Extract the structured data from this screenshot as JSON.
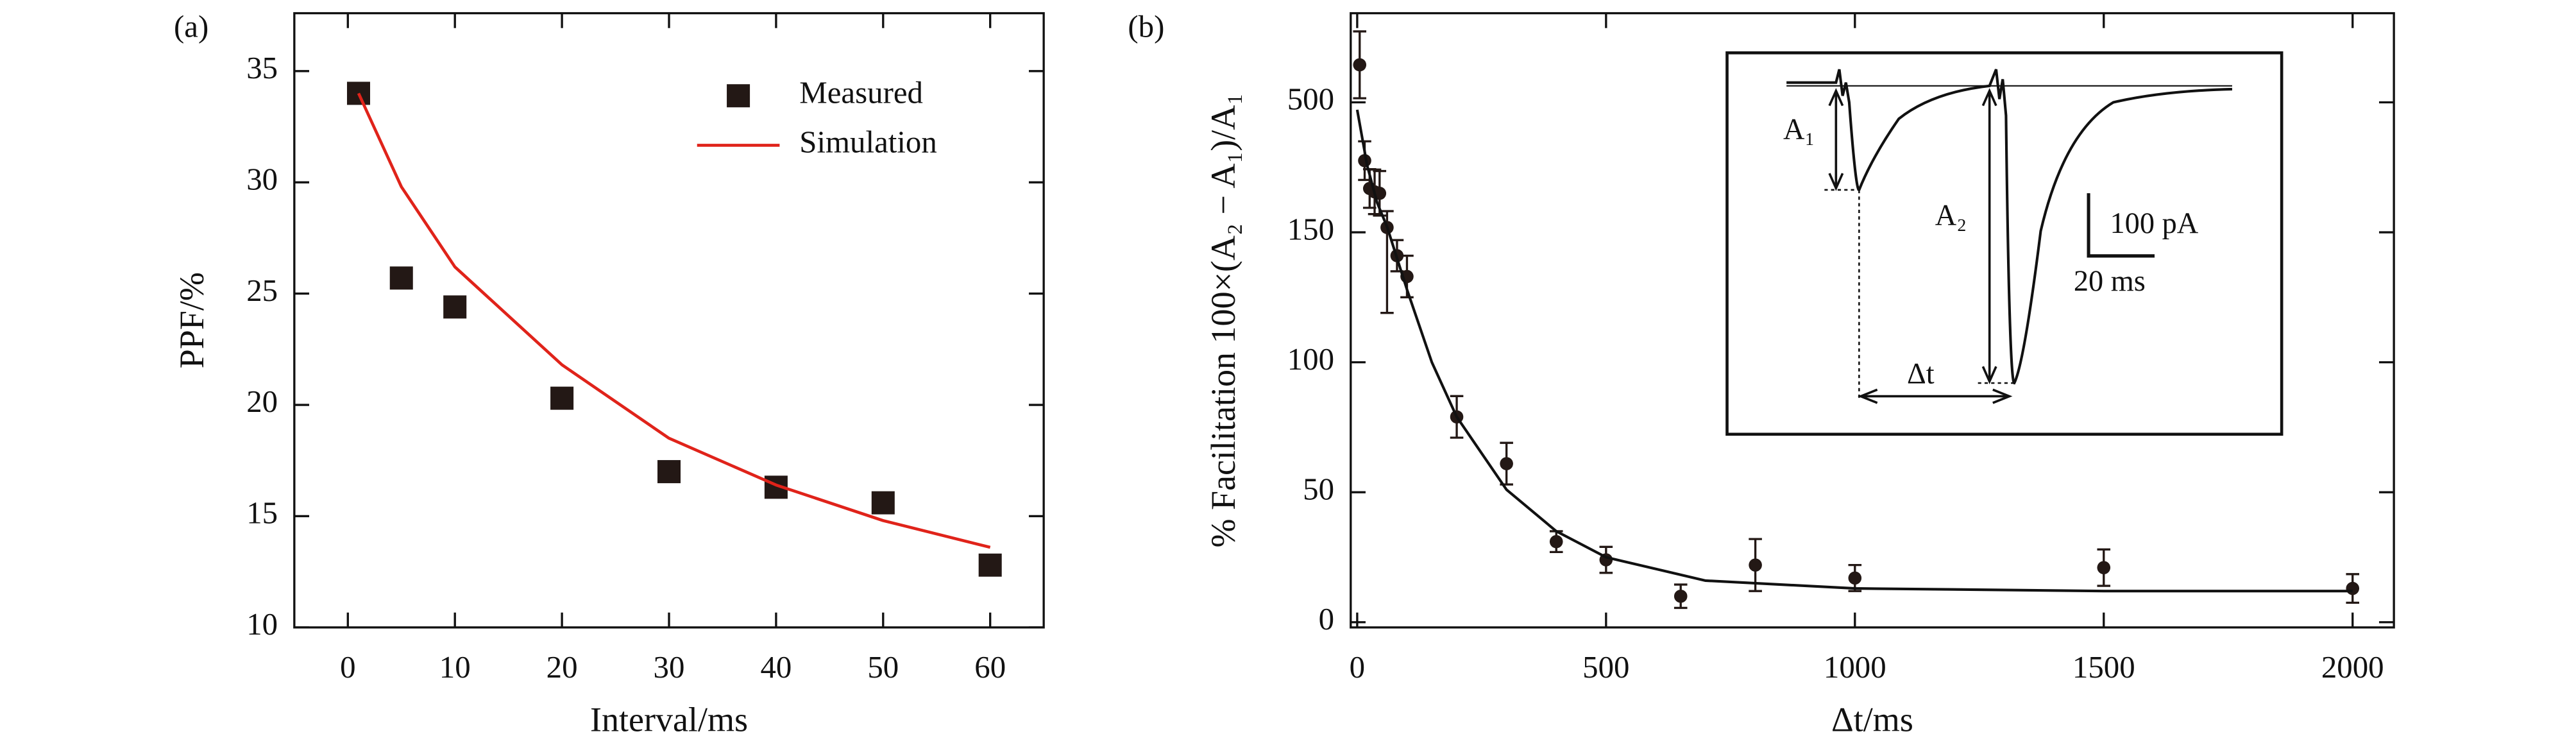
{
  "chart_data": [
    {
      "type": "scatter",
      "panel_label": "(a)",
      "xlabel": "Interval/ms",
      "ylabel": "PPF/%",
      "xlim": [
        -5,
        65
      ],
      "xticks": [
        0,
        10,
        20,
        30,
        40,
        50,
        60
      ],
      "ylim": [
        10,
        37.6
      ],
      "yticks": [
        10,
        15,
        20,
        25,
        30,
        35
      ],
      "legend": "upper right",
      "series": [
        {
          "name": "Measured",
          "type": "scatter",
          "color": "#231815",
          "x": [
            1,
            5,
            10,
            20,
            30,
            40,
            50,
            60
          ],
          "values": [
            34,
            25.7,
            24.4,
            20.3,
            17,
            16.3,
            15.6,
            12.8
          ]
        },
        {
          "name": "Simulation",
          "type": "line",
          "color": "#e0231a",
          "x": [
            1,
            5,
            10,
            20,
            30,
            40,
            50,
            60
          ],
          "values": [
            34,
            29.8,
            26.2,
            21.8,
            18.5,
            16.4,
            14.8,
            13.6
          ]
        }
      ]
    },
    {
      "type": "scatter",
      "panel_label": "(b)",
      "xlabel": "Δt/ms",
      "ylabel": "% Facilitation 100×(A₂ − A₁)/A₁",
      "xlim": [
        -13,
        2083
      ],
      "xticks": [
        0,
        500,
        1000,
        1500,
        2000
      ],
      "ylim": [
        -2,
        740
      ],
      "yticks": [
        0,
        50,
        100,
        150,
        500
      ],
      "y_break": [
        150,
        500
      ],
      "series": [
        {
          "type": "scatter",
          "color": "#231815",
          "x": [
            5,
            15,
            25,
            35,
            45,
            60,
            80,
            100,
            200,
            300,
            400,
            500,
            650,
            800,
            1000,
            1500,
            2000
          ],
          "values": [
            601,
            343,
            268,
            259,
            255,
            163,
            141,
            133,
            79,
            61,
            31,
            24,
            10,
            22,
            17,
            21,
            13
          ],
          "errors": [
            90,
            52,
            52,
            60,
            60,
            44,
            6,
            8,
            8,
            8,
            4,
            5,
            4.5,
            10,
            5,
            7,
            5.5
          ]
        },
        {
          "type": "line",
          "color": "#111111",
          "x": [
            0,
            20,
            40,
            60,
            100,
            150,
            200,
            300,
            400,
            500,
            700,
            1000,
            1500,
            2000
          ],
          "values": [
            480,
            330,
            230,
            165,
            128,
            100,
            79,
            51,
            35,
            25,
            16,
            13,
            12,
            12
          ]
        }
      ],
      "annotations": [
        "A₁",
        "A₂",
        "100 pA",
        "20 ms",
        "Δt"
      ]
    }
  ]
}
